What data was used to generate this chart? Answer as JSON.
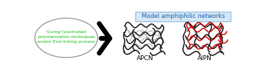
{
  "title": "Model amphiphilic networks",
  "title_color": "#1a5fa8",
  "title_box_color": "#d6e8f7",
  "title_box_edge": "#90bfdf",
  "ellipse_edge_color": "#999999",
  "apcn_label": "APCN",
  "aipn_label": "AIPN",
  "label_color": "black",
  "bg_color": "white",
  "network_black": "#1a1a1a",
  "network_gray": "#aaaaaa",
  "network_red": "#cc0000",
  "lw_black": 1.2,
  "lw_gray": 0.8,
  "lw_red": 1.1
}
